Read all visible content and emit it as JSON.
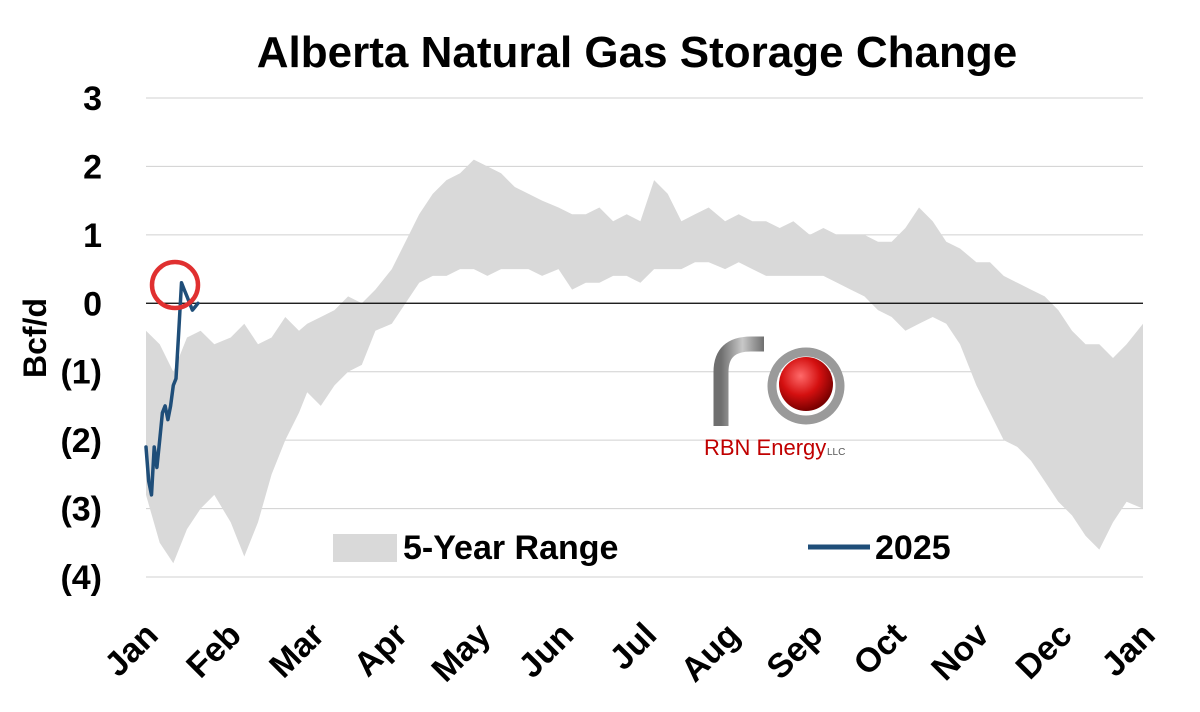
{
  "chart_data": {
    "type": "area",
    "title": "Alberta Natural Gas Storage Change",
    "ylabel": "Bcf/d",
    "xlabel": "",
    "ylim": [
      -4,
      3
    ],
    "yticks": [
      3,
      2,
      1,
      0,
      -1,
      -2,
      -3,
      -4
    ],
    "ytick_labels": [
      "3",
      "2",
      "1",
      "0",
      "(1)",
      "(2)",
      "(3)",
      "(4)"
    ],
    "x_tick_labels": [
      "Jan",
      "Feb",
      "Mar",
      "Apr",
      "May",
      "Jun",
      "Jul",
      "Aug",
      "Sep",
      "Oct",
      "Nov",
      "Dec",
      "Jan"
    ],
    "grid": true,
    "legend_position": "bottom",
    "range_series": {
      "name": "5-Year Range",
      "color": "#d9d9d9",
      "x_day": [
        0,
        5,
        10,
        15,
        20,
        25,
        31,
        36,
        41,
        46,
        51,
        56,
        59,
        64,
        69,
        74,
        79,
        84,
        90,
        95,
        100,
        105,
        110,
        115,
        120,
        125,
        130,
        135,
        140,
        145,
        151,
        156,
        161,
        166,
        171,
        176,
        181,
        186,
        191,
        196,
        201,
        206,
        212,
        217,
        222,
        227,
        232,
        237,
        243,
        248,
        253,
        258,
        263,
        268,
        273,
        278,
        283,
        288,
        293,
        298,
        304,
        309,
        314,
        319,
        324,
        329,
        334,
        339,
        344,
        349,
        354,
        359,
        365
      ],
      "high": [
        -0.4,
        -0.6,
        -1.0,
        -0.5,
        -0.4,
        -0.6,
        -0.5,
        -0.3,
        -0.6,
        -0.5,
        -0.2,
        -0.4,
        -0.3,
        -0.2,
        -0.1,
        0.1,
        0.0,
        0.2,
        0.5,
        0.9,
        1.3,
        1.6,
        1.8,
        1.9,
        2.1,
        2.0,
        1.9,
        1.7,
        1.6,
        1.5,
        1.4,
        1.3,
        1.3,
        1.4,
        1.2,
        1.3,
        1.2,
        1.8,
        1.6,
        1.2,
        1.3,
        1.4,
        1.2,
        1.3,
        1.2,
        1.2,
        1.1,
        1.2,
        1.0,
        1.1,
        1.0,
        1.0,
        1.0,
        0.9,
        0.9,
        1.1,
        1.4,
        1.2,
        0.9,
        0.8,
        0.6,
        0.6,
        0.4,
        0.3,
        0.2,
        0.1,
        -0.1,
        -0.4,
        -0.6,
        -0.6,
        -0.8,
        -0.6,
        -0.3
      ],
      "low": [
        -2.8,
        -3.5,
        -3.8,
        -3.3,
        -3.0,
        -2.8,
        -3.2,
        -3.7,
        -3.2,
        -2.5,
        -2.0,
        -1.6,
        -1.3,
        -1.5,
        -1.2,
        -1.0,
        -0.9,
        -0.4,
        -0.3,
        0.0,
        0.3,
        0.4,
        0.4,
        0.5,
        0.5,
        0.4,
        0.5,
        0.5,
        0.5,
        0.4,
        0.5,
        0.2,
        0.3,
        0.3,
        0.4,
        0.4,
        0.3,
        0.5,
        0.5,
        0.5,
        0.6,
        0.6,
        0.5,
        0.6,
        0.5,
        0.4,
        0.4,
        0.4,
        0.4,
        0.4,
        0.3,
        0.2,
        0.1,
        -0.1,
        -0.2,
        -0.4,
        -0.3,
        -0.2,
        -0.3,
        -0.6,
        -1.2,
        -1.6,
        -2.0,
        -2.1,
        -2.3,
        -2.6,
        -2.9,
        -3.1,
        -3.4,
        -3.6,
        -3.2,
        -2.9,
        -3.0
      ]
    },
    "series": [
      {
        "name": "2025",
        "color": "#1f4e79",
        "x_day": [
          0,
          1,
          2,
          3,
          4,
          5,
          6,
          7,
          8,
          9,
          10,
          11,
          12,
          13,
          14,
          15,
          16,
          17,
          18,
          19
        ],
        "values": [
          -2.1,
          -2.6,
          -2.8,
          -2.1,
          -2.4,
          -2.0,
          -1.6,
          -1.5,
          -1.7,
          -1.5,
          -1.2,
          -1.1,
          -0.4,
          0.3,
          0.2,
          0.1,
          0.0,
          -0.1,
          -0.05,
          0.0
        ]
      }
    ],
    "highlight_color": "#e03030",
    "zero_line_color": "#000000"
  },
  "logo": {
    "brand": "RBN Energy",
    "suffix": "LLC",
    "brand_color": "#c00000",
    "pipe_color": "#8c8c8c",
    "ball_color": "#d41010"
  }
}
